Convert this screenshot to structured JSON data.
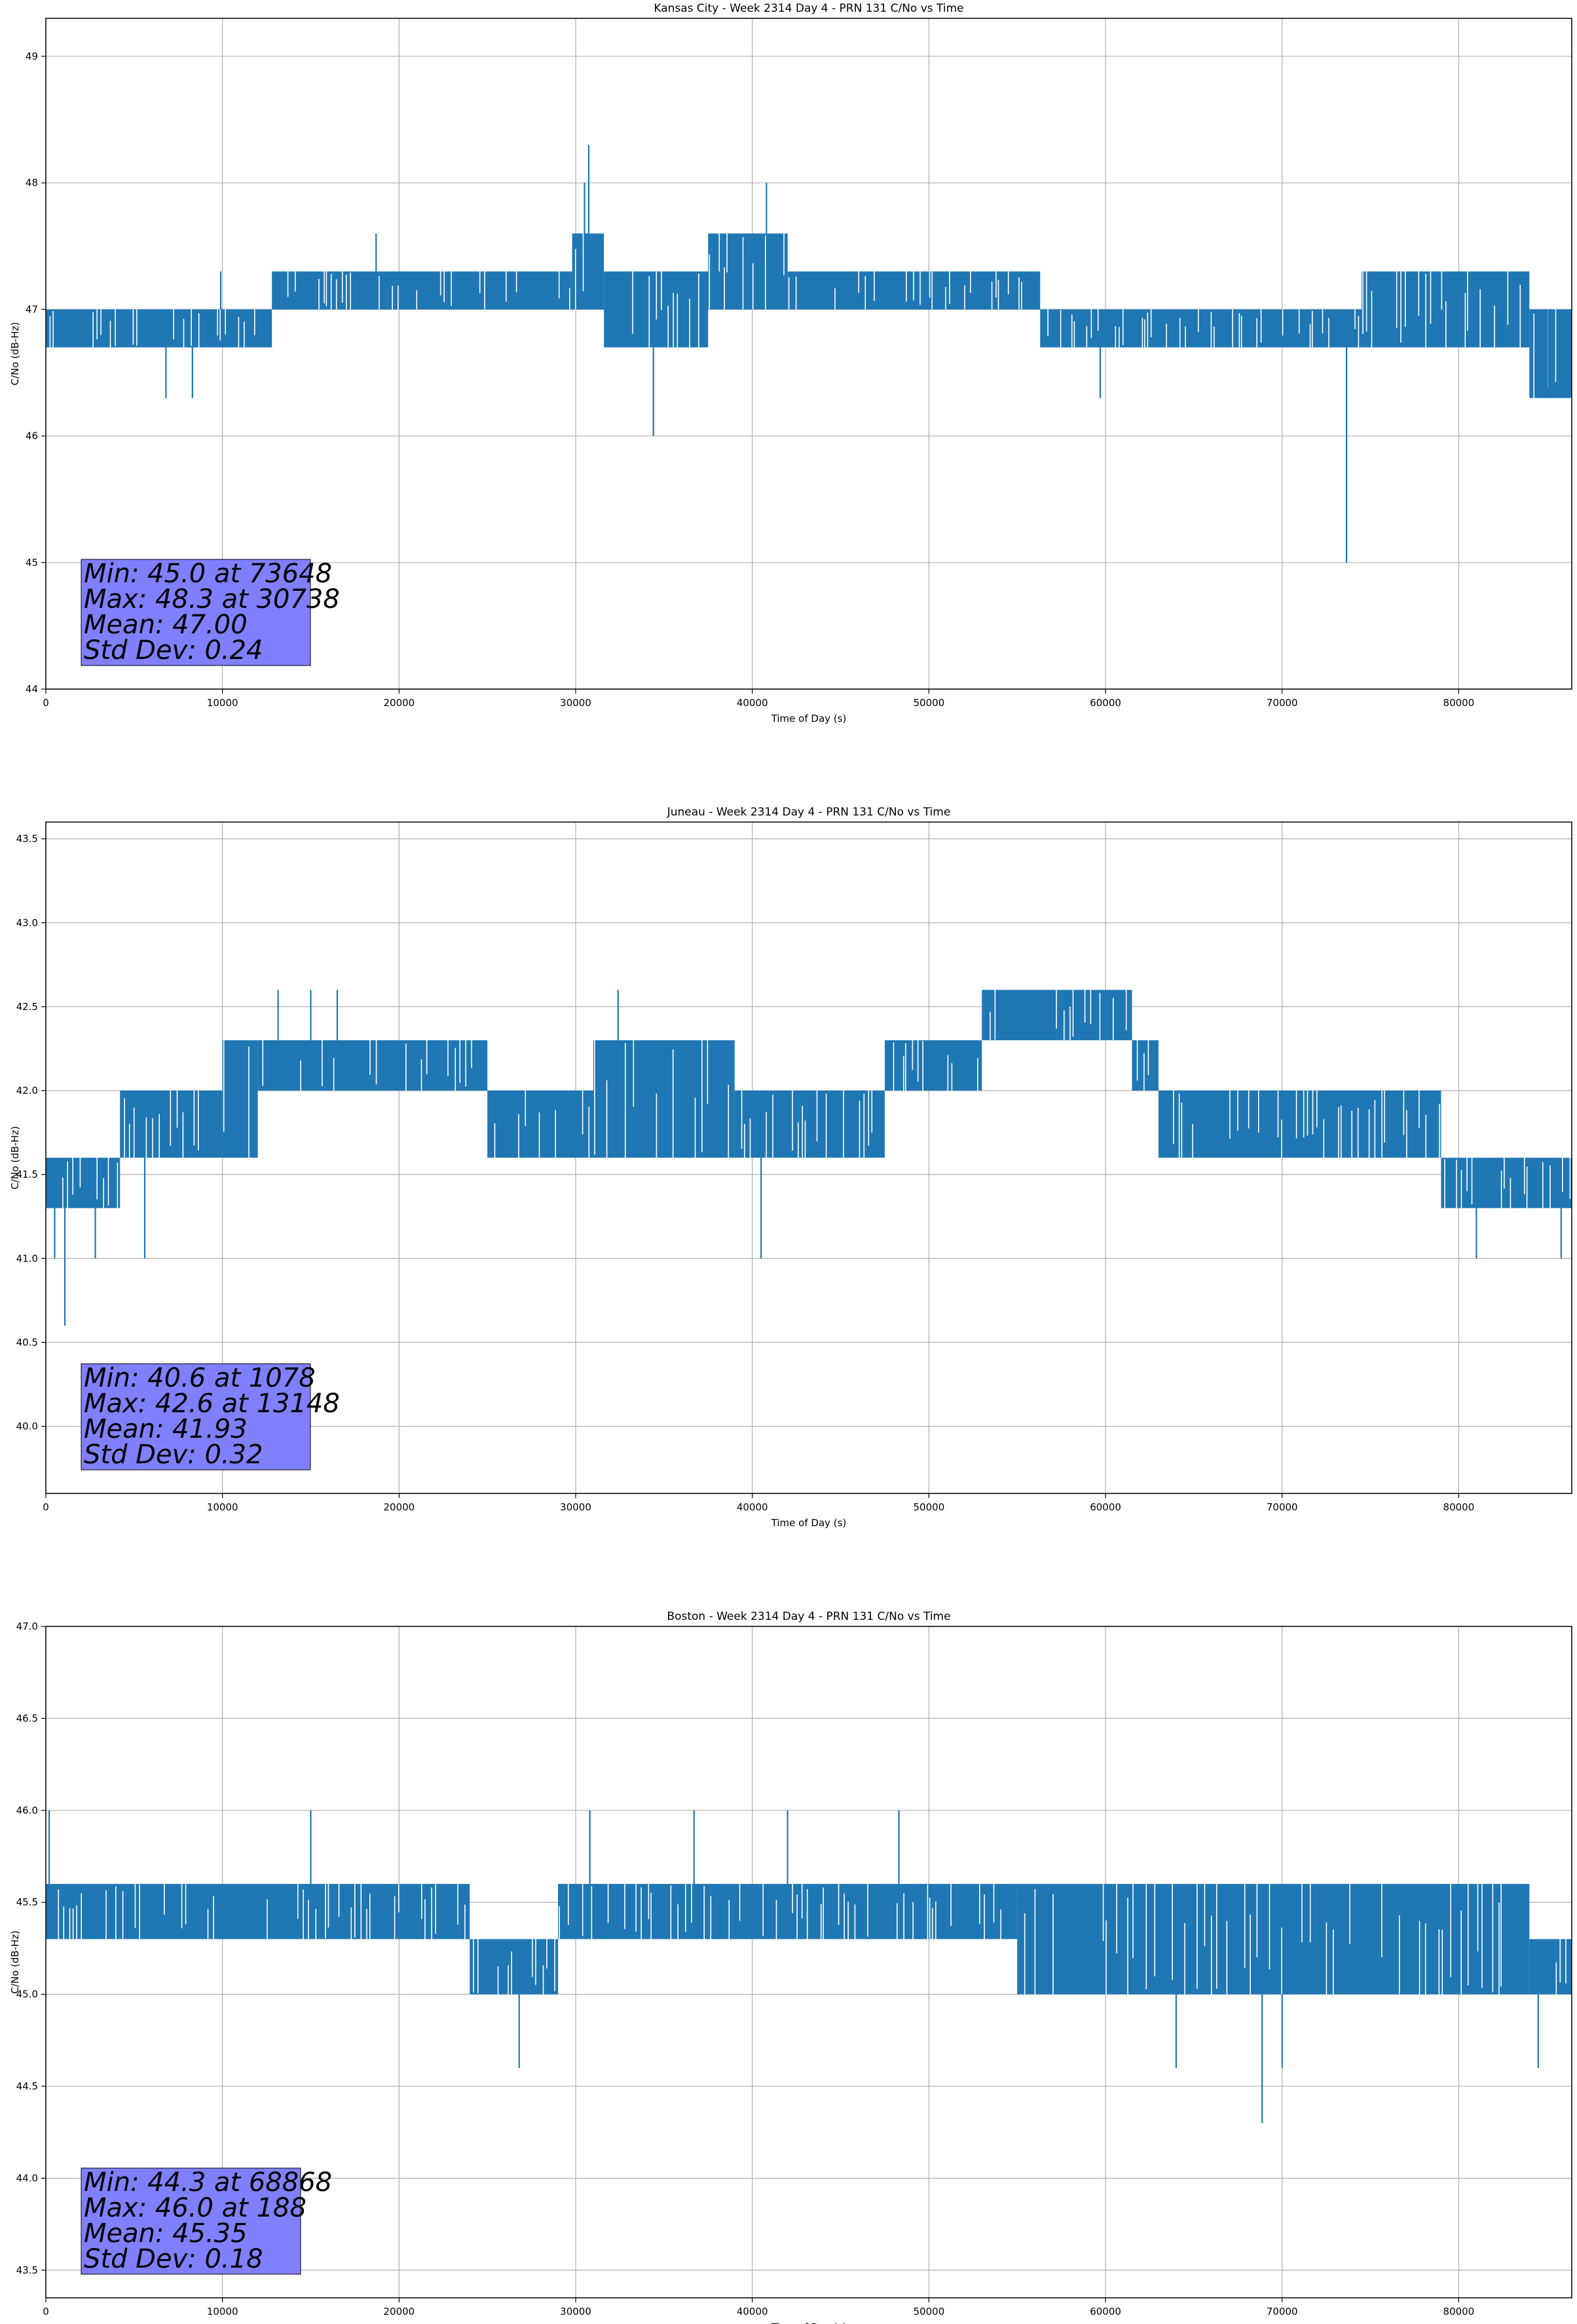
{
  "chart_data": [
    {
      "type": "line",
      "title": "Kansas City - Week 2314 Day 4 - PRN 131 C/No vs Time",
      "xlabel": "Time of Day (s)",
      "ylabel": "C/No (dB-Hz)",
      "xlim": [
        0,
        86400
      ],
      "ylim": [
        44,
        49.3
      ],
      "xticks": [
        0,
        10000,
        20000,
        30000,
        40000,
        50000,
        60000,
        70000,
        80000
      ],
      "xtick_labels": [
        "0",
        "10000",
        "20000",
        "30000",
        "40000",
        "50000",
        "60000",
        "70000",
        "80000"
      ],
      "yticks": [
        44,
        45,
        46,
        47,
        48,
        49
      ],
      "ytick_labels": [
        "44",
        "45",
        "46",
        "47",
        "48",
        "49"
      ],
      "grid": true,
      "series_color": "#1f77b4",
      "band_ranges": [
        {
          "x0": 0,
          "x1": 12800,
          "y0": 46.7,
          "y1": 47.0
        },
        {
          "x0": 12800,
          "x1": 29800,
          "y0": 47.0,
          "y1": 47.3
        },
        {
          "x0": 29800,
          "x1": 31600,
          "y0": 47.0,
          "y1": 47.6
        },
        {
          "x0": 31600,
          "x1": 37500,
          "y0": 46.7,
          "y1": 47.3
        },
        {
          "x0": 37500,
          "x1": 42000,
          "y0": 47.0,
          "y1": 47.6
        },
        {
          "x0": 42000,
          "x1": 56300,
          "y0": 47.0,
          "y1": 47.3
        },
        {
          "x0": 56300,
          "x1": 74500,
          "y0": 46.7,
          "y1": 47.0
        },
        {
          "x0": 74500,
          "x1": 84000,
          "y0": 46.7,
          "y1": 47.3
        },
        {
          "x0": 84000,
          "x1": 86400,
          "y0": 46.3,
          "y1": 47.0
        }
      ],
      "spikes": [
        {
          "x": 6800,
          "y": 46.3
        },
        {
          "x": 8300,
          "y": 46.3
        },
        {
          "x": 9900,
          "y": 47.3
        },
        {
          "x": 18700,
          "y": 47.6
        },
        {
          "x": 34400,
          "y": 46.0
        },
        {
          "x": 30738,
          "y": 48.3
        },
        {
          "x": 30500,
          "y": 48.0
        },
        {
          "x": 40800,
          "y": 48.0
        },
        {
          "x": 59700,
          "y": 46.3
        },
        {
          "x": 73648,
          "y": 45.0
        },
        {
          "x": 82500,
          "y": 47.3
        },
        {
          "x": 85000,
          "y": 47.0
        }
      ],
      "stats_text": [
        "Min: 45.0 at 73648",
        "Max: 48.3 at 30738",
        "Mean: 47.00",
        "Std Dev: 0.24"
      ],
      "stats_box_color": "#8080ff"
    },
    {
      "type": "line",
      "title": "Juneau - Week 2314 Day 4 - PRN 131 C/No vs Time",
      "xlabel": "Time of Day (s)",
      "ylabel": "C/No (dB-Hz)",
      "xlim": [
        0,
        86400
      ],
      "ylim": [
        39.6,
        43.6
      ],
      "xticks": [
        0,
        10000,
        20000,
        30000,
        40000,
        50000,
        60000,
        70000,
        80000
      ],
      "xtick_labels": [
        "0",
        "10000",
        "20000",
        "30000",
        "40000",
        "50000",
        "60000",
        "70000",
        "80000"
      ],
      "yticks": [
        40.0,
        40.5,
        41.0,
        41.5,
        42.0,
        42.5,
        43.0,
        43.5
      ],
      "ytick_labels": [
        "40.0",
        "40.5",
        "41.0",
        "41.5",
        "42.0",
        "42.5",
        "43.0",
        "43.5"
      ],
      "grid": true,
      "series_color": "#1f77b4",
      "band_ranges": [
        {
          "x0": 0,
          "x1": 4200,
          "y0": 41.3,
          "y1": 41.6
        },
        {
          "x0": 4200,
          "x1": 10000,
          "y0": 41.6,
          "y1": 42.0
        },
        {
          "x0": 10000,
          "x1": 12000,
          "y0": 41.6,
          "y1": 42.3
        },
        {
          "x0": 12000,
          "x1": 25000,
          "y0": 42.0,
          "y1": 42.3
        },
        {
          "x0": 25000,
          "x1": 31000,
          "y0": 41.6,
          "y1": 42.0
        },
        {
          "x0": 31000,
          "x1": 39000,
          "y0": 41.6,
          "y1": 42.3
        },
        {
          "x0": 39000,
          "x1": 47500,
          "y0": 41.6,
          "y1": 42.0
        },
        {
          "x0": 47500,
          "x1": 53000,
          "y0": 42.0,
          "y1": 42.3
        },
        {
          "x0": 53000,
          "x1": 61500,
          "y0": 42.3,
          "y1": 42.6
        },
        {
          "x0": 61500,
          "x1": 63000,
          "y0": 42.0,
          "y1": 42.3
        },
        {
          "x0": 63000,
          "x1": 79000,
          "y0": 41.6,
          "y1": 42.0
        },
        {
          "x0": 79000,
          "x1": 86400,
          "y0": 41.3,
          "y1": 41.6
        }
      ],
      "spikes": [
        {
          "x": 1078,
          "y": 40.6
        },
        {
          "x": 500,
          "y": 41.0
        },
        {
          "x": 2800,
          "y": 41.0
        },
        {
          "x": 5600,
          "y": 41.0
        },
        {
          "x": 13148,
          "y": 42.6
        },
        {
          "x": 15000,
          "y": 42.6
        },
        {
          "x": 16500,
          "y": 42.6
        },
        {
          "x": 32400,
          "y": 42.6
        },
        {
          "x": 40500,
          "y": 41.0
        },
        {
          "x": 81000,
          "y": 41.0
        },
        {
          "x": 85800,
          "y": 41.0
        }
      ],
      "stats_text": [
        "Min: 40.6 at 1078",
        "Max: 42.6 at 13148",
        "Mean: 41.93",
        "Std Dev: 0.32"
      ],
      "stats_box_color": "#8080ff"
    },
    {
      "type": "line",
      "title": "Boston - Week 2314 Day 4 - PRN 131 C/No vs Time",
      "xlabel": "Time of Day (s)",
      "ylabel": "C/No (dB-Hz)",
      "xlim": [
        0,
        86400
      ],
      "ylim": [
        43.35,
        47.0
      ],
      "xticks": [
        0,
        10000,
        20000,
        30000,
        40000,
        50000,
        60000,
        70000,
        80000
      ],
      "xtick_labels": [
        "0",
        "10000",
        "20000",
        "30000",
        "40000",
        "50000",
        "60000",
        "70000",
        "80000"
      ],
      "yticks": [
        43.5,
        44.0,
        44.5,
        45.0,
        45.5,
        46.0,
        46.5,
        47.0
      ],
      "ytick_labels": [
        "43.5",
        "44.0",
        "44.5",
        "45.0",
        "45.5",
        "46.0",
        "46.5",
        "47.0"
      ],
      "grid": true,
      "series_color": "#1f77b4",
      "band_ranges": [
        {
          "x0": 0,
          "x1": 24000,
          "y0": 45.3,
          "y1": 45.6
        },
        {
          "x0": 24000,
          "x1": 29000,
          "y0": 45.0,
          "y1": 45.3
        },
        {
          "x0": 29000,
          "x1": 55000,
          "y0": 45.3,
          "y1": 45.6
        },
        {
          "x0": 55000,
          "x1": 84000,
          "y0": 45.0,
          "y1": 45.6
        },
        {
          "x0": 84000,
          "x1": 86400,
          "y0": 45.0,
          "y1": 45.3
        }
      ],
      "spikes": [
        {
          "x": 188,
          "y": 46.0
        },
        {
          "x": 15000,
          "y": 46.0
        },
        {
          "x": 26800,
          "y": 44.6
        },
        {
          "x": 30800,
          "y": 46.0
        },
        {
          "x": 36700,
          "y": 46.0
        },
        {
          "x": 42000,
          "y": 46.0
        },
        {
          "x": 48300,
          "y": 46.0
        },
        {
          "x": 64000,
          "y": 44.6
        },
        {
          "x": 68868,
          "y": 44.3
        },
        {
          "x": 70000,
          "y": 44.6
        },
        {
          "x": 84500,
          "y": 44.6
        }
      ],
      "stats_text": [
        "Min: 44.3 at 68868",
        "Max: 46.0 at 188",
        "Mean: 45.35",
        "Std Dev: 0.18"
      ],
      "stats_box_color": "#8080ff"
    }
  ]
}
